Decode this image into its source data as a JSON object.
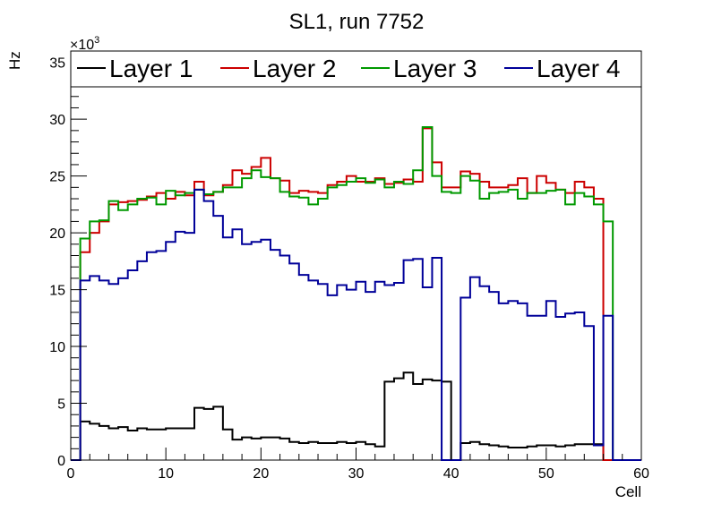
{
  "chart_data": {
    "type": "line",
    "title": "SL1, run 7752",
    "xlabel": "Cell",
    "ylabel": "Hz",
    "y_multiplier_label": "×10",
    "y_multiplier_exp": "3",
    "xlim": [
      0,
      60
    ],
    "ylim": [
      0,
      36
    ],
    "x_ticks": [
      0,
      10,
      20,
      30,
      40,
      50,
      60
    ],
    "y_ticks": [
      0,
      5,
      10,
      15,
      20,
      25,
      30,
      35
    ],
    "grid": false,
    "legend_position": "top",
    "series": [
      {
        "name": "Layer 1",
        "color": "#000000",
        "values": [
          0,
          3.4,
          3.2,
          3.0,
          2.8,
          2.9,
          2.6,
          2.8,
          2.7,
          2.7,
          2.8,
          2.8,
          2.8,
          4.6,
          4.5,
          4.7,
          2.7,
          1.8,
          2.0,
          1.9,
          2.0,
          2.0,
          1.9,
          1.6,
          1.5,
          1.6,
          1.5,
          1.5,
          1.6,
          1.5,
          1.6,
          1.4,
          1.2,
          6.9,
          7.2,
          7.7,
          6.7,
          7.1,
          7.0,
          6.9,
          0,
          1.5,
          1.6,
          1.4,
          1.3,
          1.2,
          1.1,
          1.1,
          1.2,
          1.3,
          1.3,
          1.2,
          1.3,
          1.4,
          1.4,
          1.4,
          0,
          0,
          0,
          0
        ]
      },
      {
        "name": "Layer 2",
        "color": "#cc0000",
        "values": [
          0,
          18.3,
          20.0,
          21.0,
          22.5,
          22.7,
          22.8,
          22.9,
          23.2,
          23.5,
          23.0,
          23.6,
          23.3,
          24.5,
          23.3,
          23.6,
          24.2,
          25.5,
          25.2,
          25.8,
          26.6,
          24.8,
          24.6,
          23.5,
          23.7,
          23.6,
          23.5,
          24.2,
          24.5,
          25.0,
          24.5,
          24.5,
          24.8,
          24.3,
          24.4,
          24.7,
          24.5,
          29.2,
          26.2,
          24.0,
          24.0,
          25.4,
          25.2,
          24.5,
          24.0,
          24.0,
          24.2,
          24.8,
          23.5,
          25.0,
          24.4,
          23.8,
          23.5,
          24.5,
          24.0,
          23.0,
          0,
          0,
          0,
          0
        ]
      },
      {
        "name": "Layer 3",
        "color": "#009900",
        "values": [
          0,
          19.5,
          21.0,
          21.1,
          22.8,
          22.0,
          22.5,
          23.0,
          23.1,
          22.5,
          23.7,
          23.3,
          23.5,
          23.8,
          23.4,
          23.6,
          24.0,
          24.0,
          24.8,
          25.5,
          24.9,
          24.8,
          23.6,
          23.2,
          23.1,
          22.5,
          23.0,
          24.0,
          24.2,
          24.5,
          24.8,
          24.4,
          24.7,
          24.0,
          24.5,
          24.3,
          25.5,
          29.3,
          25.0,
          23.6,
          23.5,
          25.0,
          24.6,
          23.0,
          23.5,
          23.6,
          23.8,
          23.0,
          23.5,
          23.5,
          23.7,
          23.8,
          22.5,
          23.5,
          23.2,
          22.5,
          21.0,
          0,
          0,
          0
        ]
      },
      {
        "name": "Layer 4",
        "color": "#000099",
        "values": [
          0,
          15.8,
          16.2,
          15.8,
          15.5,
          16.0,
          16.7,
          17.5,
          18.3,
          18.4,
          19.2,
          20.1,
          20.0,
          23.8,
          22.8,
          21.5,
          19.6,
          20.3,
          19.0,
          19.2,
          19.4,
          18.5,
          18.0,
          17.3,
          16.3,
          15.8,
          15.5,
          14.5,
          15.4,
          15.0,
          15.7,
          14.8,
          15.7,
          15.4,
          15.6,
          17.6,
          17.7,
          15.2,
          17.8,
          0,
          0,
          14.3,
          16.1,
          15.3,
          14.8,
          13.8,
          14.0,
          13.8,
          12.7,
          12.7,
          14.0,
          12.6,
          12.9,
          13.0,
          11.8,
          1.3,
          12.7,
          0,
          0,
          0
        ]
      }
    ]
  }
}
